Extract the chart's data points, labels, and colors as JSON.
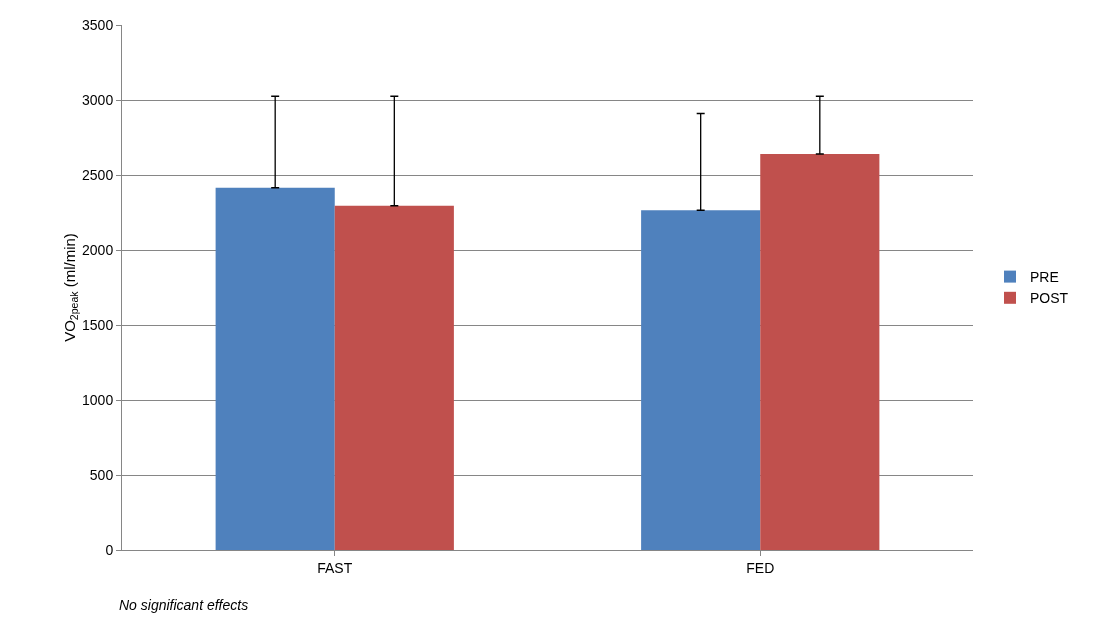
{
  "chart_data": {
    "type": "bar",
    "categories": [
      "FAST",
      "FED"
    ],
    "series": [
      {
        "name": "PRE",
        "color": "#4f81bd",
        "values": [
          2415,
          2265
        ],
        "errors": [
          [
            2415,
            3025
          ],
          [
            2265,
            2910
          ]
        ]
      },
      {
        "name": "POST",
        "color": "#c0504d",
        "values": [
          2295,
          2640
        ],
        "errors": [
          [
            2295,
            3025
          ],
          [
            2640,
            3025
          ]
        ]
      }
    ],
    "ylabel": "VO$_{2peak}$ (ml/min)",
    "ylim": [
      0,
      3500
    ],
    "yticks": [
      0,
      500,
      1000,
      1500,
      2000,
      2500,
      3000,
      3500
    ],
    "grid": "y",
    "legend": "right",
    "annotations": [
      "No significant effects"
    ]
  }
}
